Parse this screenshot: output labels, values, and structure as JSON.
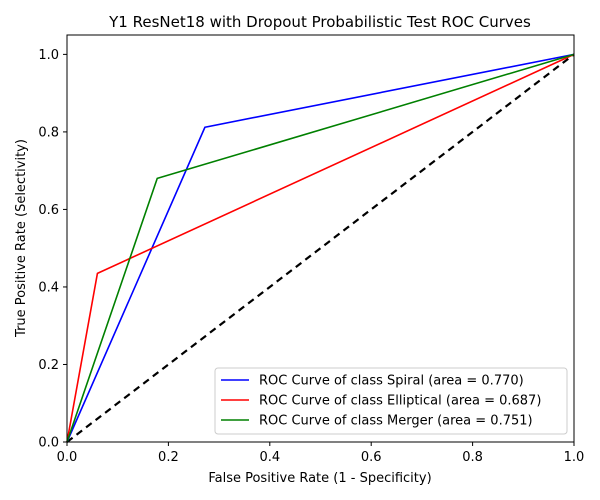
{
  "chart_data": {
    "type": "line",
    "title": "Y1 ResNet18 with Dropout Probabilistic Test ROC Curves",
    "xlabel": "False Positive Rate (1 - Specificity)",
    "ylabel": "True Positive Rate (Selectivity)",
    "xlim": [
      0.0,
      1.0
    ],
    "ylim": [
      0.0,
      1.05
    ],
    "xticks": [
      "0.0",
      "0.2",
      "0.4",
      "0.6",
      "0.8",
      "1.0"
    ],
    "yticks": [
      "0.0",
      "0.2",
      "0.4",
      "0.6",
      "0.8",
      "1.0"
    ],
    "grid": false,
    "legend_position": "lower-right",
    "series": [
      {
        "name": "ROC Curve of class Spiral (area = 0.770)",
        "color": "#0000ff",
        "x": [
          0.0,
          0.272,
          1.0
        ],
        "y": [
          0.0,
          0.812,
          1.0
        ]
      },
      {
        "name": "ROC Curve of class Elliptical (area = 0.687)",
        "color": "#ff0000",
        "x": [
          0.0,
          0.06,
          1.0
        ],
        "y": [
          0.0,
          0.435,
          1.0
        ]
      },
      {
        "name": "ROC Curve of class Merger (area = 0.751)",
        "color": "#008000",
        "x": [
          0.0,
          0.178,
          1.0
        ],
        "y": [
          0.0,
          0.68,
          1.0
        ]
      }
    ],
    "reference_line": {
      "color": "#000000",
      "style": "dashed",
      "x": [
        0.0,
        1.0
      ],
      "y": [
        0.0,
        1.0
      ]
    }
  }
}
